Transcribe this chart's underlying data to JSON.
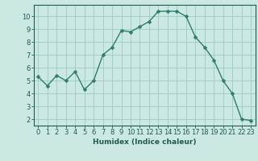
{
  "x": [
    0,
    1,
    2,
    3,
    4,
    5,
    6,
    7,
    8,
    9,
    10,
    11,
    12,
    13,
    14,
    15,
    16,
    17,
    18,
    19,
    20,
    21,
    22,
    23
  ],
  "y": [
    5.3,
    4.6,
    5.4,
    5.0,
    5.7,
    4.3,
    5.0,
    7.0,
    7.6,
    8.9,
    8.8,
    9.2,
    9.6,
    10.4,
    10.4,
    10.4,
    10.0,
    8.4,
    7.6,
    6.6,
    5.0,
    4.0,
    2.0,
    1.9
  ],
  "line_color": "#2e7d6e",
  "marker": "D",
  "markersize": 2.5,
  "linewidth": 1.0,
  "xlabel": "Humidex (Indice chaleur)",
  "xlim": [
    -0.5,
    23.5
  ],
  "ylim": [
    1.5,
    10.9
  ],
  "bg_color": "#cce8e3",
  "grid_color": "#99ccc4",
  "yticks": [
    2,
    3,
    4,
    5,
    6,
    7,
    8,
    9,
    10
  ],
  "xticks": [
    0,
    1,
    2,
    3,
    4,
    5,
    6,
    7,
    8,
    9,
    10,
    11,
    12,
    13,
    14,
    15,
    16,
    17,
    18,
    19,
    20,
    21,
    22,
    23
  ],
  "xlabel_fontsize": 6.5,
  "tick_fontsize": 6.0,
  "tick_color": "#1e5c50"
}
